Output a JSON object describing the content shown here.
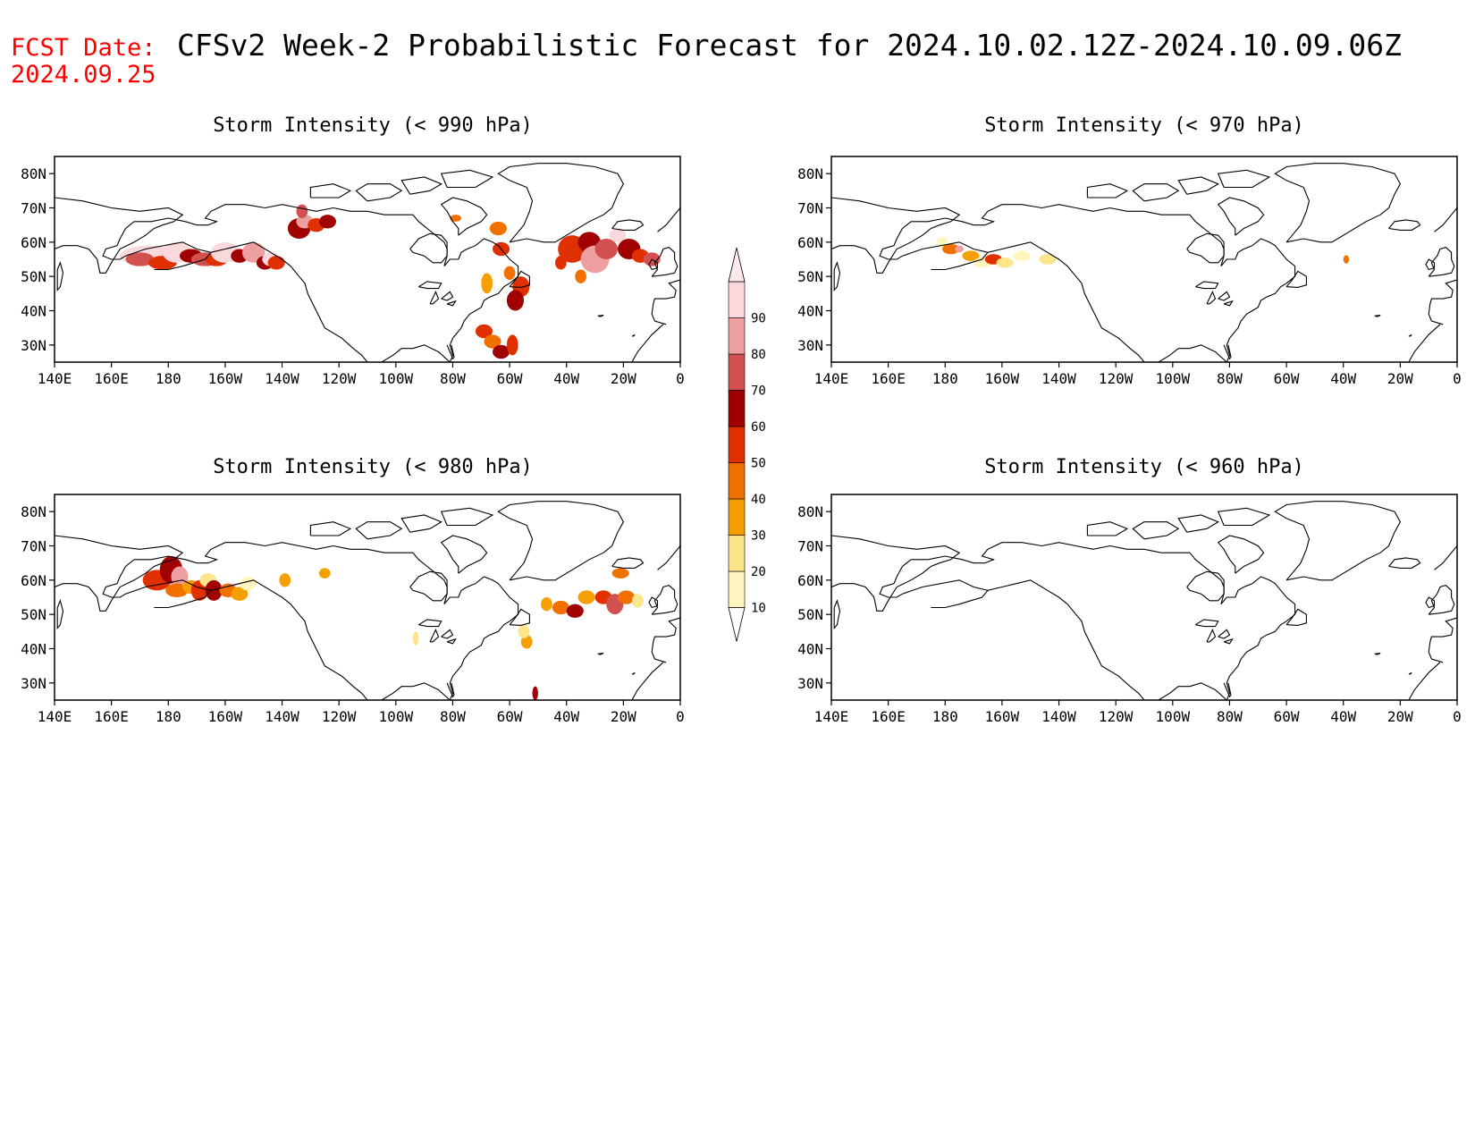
{
  "header": {
    "fcst_label": "FCST Date:",
    "fcst_date": "2024.09.25",
    "title": "CFSv2 Week-2 Probabilistic Forecast for 2024.10.02.12Z-2024.10.09.06Z"
  },
  "panels": [
    {
      "title": "Storm Intensity (< 990 hPa)"
    },
    {
      "title": "Storm Intensity (< 970 hPa)"
    },
    {
      "title": "Storm Intensity (< 980 hPa)"
    },
    {
      "title": "Storm Intensity (< 960 hPa)"
    }
  ],
  "axes": {
    "lon_labels": [
      "140E",
      "160E",
      "180",
      "160W",
      "140W",
      "120W",
      "100W",
      "80W",
      "60W",
      "40W",
      "20W",
      "0"
    ],
    "lat_labels": [
      "80N",
      "70N",
      "60N",
      "50N",
      "40N",
      "30N"
    ]
  },
  "colorbar": {
    "levels": [
      "10",
      "20",
      "30",
      "40",
      "50",
      "60",
      "70",
      "80",
      "90"
    ],
    "colors": [
      "#fff5bf",
      "#fce58a",
      "#f5a000",
      "#f07000",
      "#e03000",
      "#a00000",
      "#d35050",
      "#eea0a0",
      "#fbd8dc"
    ]
  },
  "colors": {
    "header_red": "#ff0000",
    "coast": "#000000"
  }
}
